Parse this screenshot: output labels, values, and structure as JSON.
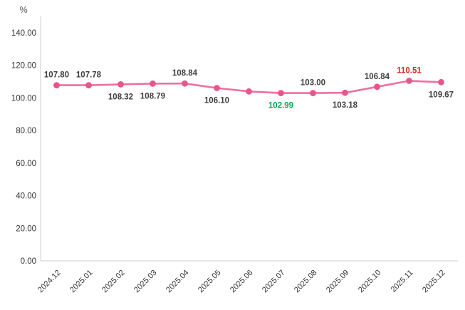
{
  "chart_data": {
    "type": "line",
    "title": "",
    "unit": "%",
    "xlabel": "",
    "ylabel": "%",
    "categories": [
      "2024.12",
      "2025.01",
      "2025.02",
      "2025.03",
      "2025.04",
      "2025.05",
      "2025.06",
      "2025.07",
      "2025.08",
      "2025.09",
      "2025.10",
      "2025.11",
      "2025.12"
    ],
    "values": [
      107.8,
      107.78,
      108.32,
      108.79,
      108.84,
      106.1,
      104.0,
      102.99,
      103.0,
      103.18,
      106.84,
      110.51,
      109.67
    ],
    "point_labels": [
      "107.80",
      "107.78",
      "108.32",
      "108.79",
      "108.84",
      "106.10",
      null,
      "102.99",
      "103.00",
      "103.18",
      "106.84",
      "110.51",
      "109.67"
    ],
    "label_positions": [
      "above",
      "above",
      "below",
      "below",
      "above",
      "below",
      null,
      "below",
      "above",
      "below",
      "above",
      "above",
      "below"
    ],
    "min_index": 7,
    "max_index": 11,
    "ylim": [
      0,
      140
    ],
    "ytick_step": 20,
    "ytick_labels": [
      "0.00",
      "20.00",
      "40.00",
      "60.00",
      "80.00",
      "100.00",
      "120.00",
      "140.00"
    ],
    "grid": false,
    "legend": false,
    "colors": {
      "line": "#ef6f9f",
      "marker": "#e9548c",
      "label_default": "#3f3f3f",
      "label_min": "#00a551",
      "label_max": "#e02020",
      "axis_line": "#cccccc",
      "axis_text": "#333333",
      "background": "#ffffff"
    }
  }
}
